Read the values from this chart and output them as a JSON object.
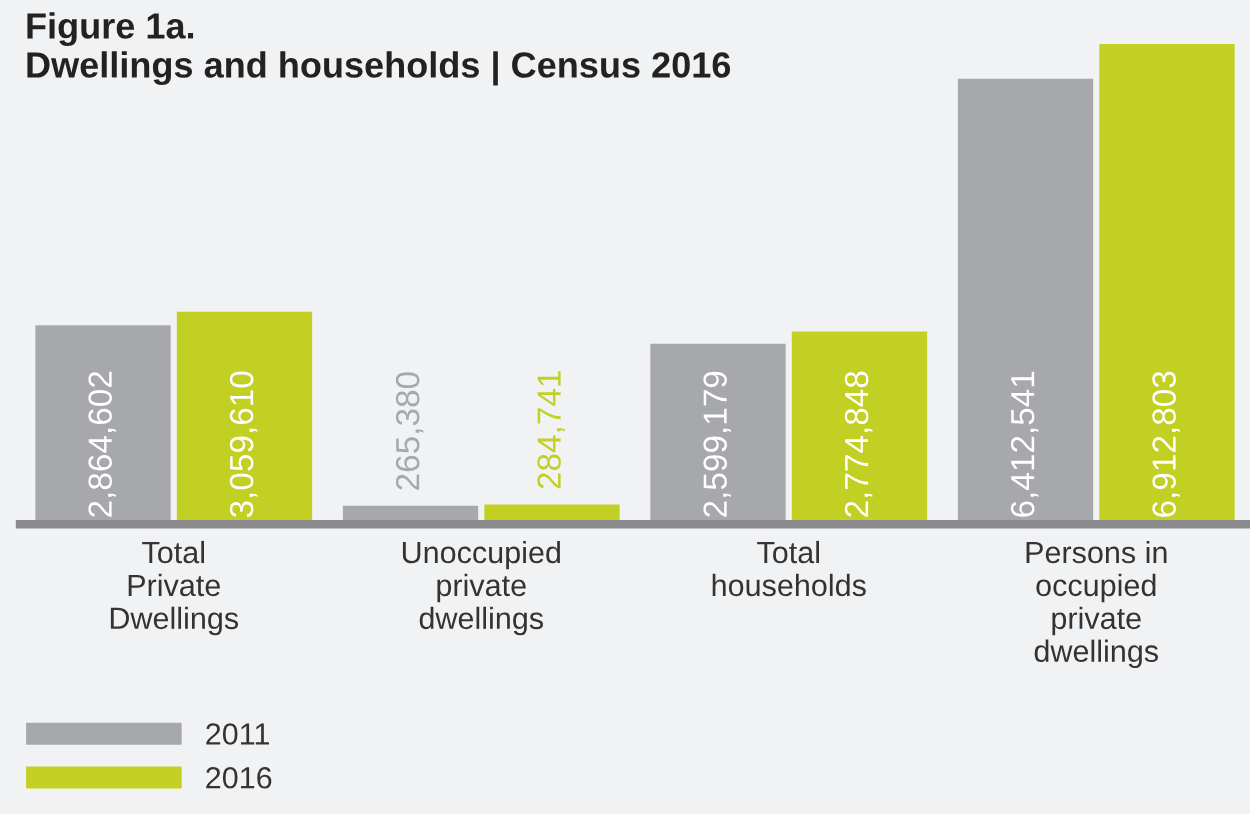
{
  "chart_data": {
    "type": "bar",
    "title": "Figure 1a.\nDwellings and households | Census 2016",
    "categories": [
      "Total\nPrivate\nDwellings",
      "Unoccupied\nprivate\ndwellings",
      "Total\nhouseholds",
      "Persons in\noccupied\nprivate\ndwellings"
    ],
    "series": [
      {
        "name": "2011",
        "color": "#a7a8ab",
        "values": [
          2864602,
          265380,
          2599179,
          6412541
        ],
        "value_labels": [
          "2,864,602",
          "265,380",
          "2,599,179",
          "6,412,541"
        ]
      },
      {
        "name": "2016",
        "color": "#c2d024",
        "values": [
          3059610,
          284741,
          2774848,
          6912803
        ],
        "value_labels": [
          "3,059,610",
          "284,741",
          "2,774,848",
          "6,912,803"
        ]
      }
    ],
    "relative": false,
    "legend": "bottom left",
    "grid": false
  }
}
